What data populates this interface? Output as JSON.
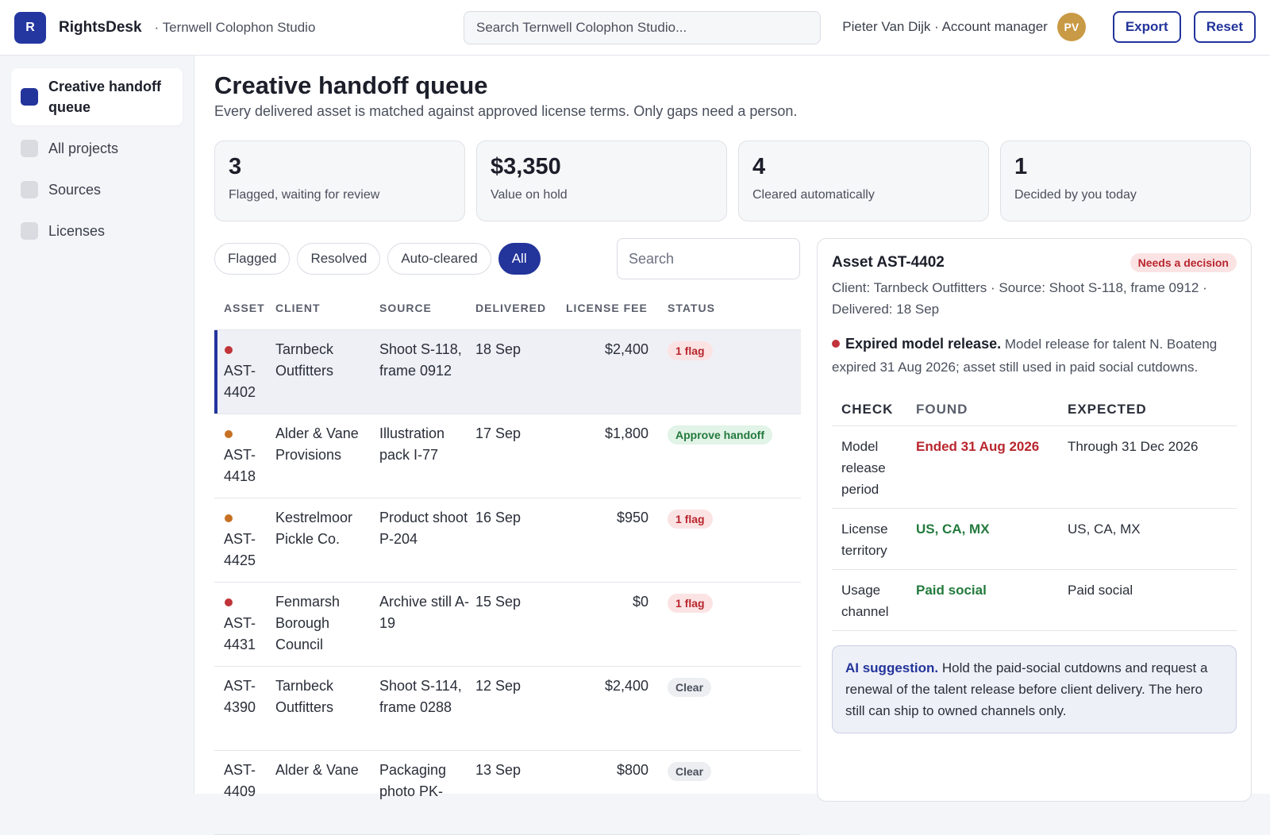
{
  "header": {
    "logo_letter": "R",
    "brand": "RightsDesk",
    "org": "· Ternwell Colophon Studio",
    "search_placeholder": "Search Ternwell Colophon Studio...",
    "user": "Pieter Van Dijk · Account manager",
    "avatar_initials": "PV",
    "export_label": "Export",
    "reset_label": "Reset"
  },
  "sidebar": {
    "items": [
      {
        "label": "Creative handoff queue",
        "active": true
      },
      {
        "label": "All projects",
        "active": false
      },
      {
        "label": "Sources",
        "active": false
      },
      {
        "label": "Licenses",
        "active": false
      }
    ]
  },
  "main": {
    "title": "Creative handoff queue",
    "subtitle": "Every delivered asset is matched against approved license terms. Only gaps need a person.",
    "stats": [
      {
        "value": "3",
        "label": "Flagged, waiting for review"
      },
      {
        "value": "$3,350",
        "label": "Value on hold"
      },
      {
        "value": "4",
        "label": "Cleared automatically"
      },
      {
        "value": "1",
        "label": "Decided by you today"
      }
    ],
    "filters": [
      "Flagged",
      "Resolved",
      "Auto-cleared",
      "All"
    ],
    "active_filter": "All",
    "search_placeholder": "Search",
    "table": {
      "columns": [
        "ASSET",
        "CLIENT",
        "SOURCE",
        "DELIVERED",
        "LICENSE FEE",
        "STATUS"
      ],
      "rows": [
        {
          "asset": "AST-4402",
          "client": "Tarnbeck Outfitters",
          "source": "Shoot S-118, frame 0912",
          "delivered": "18 Sep",
          "fee": "$2,400",
          "status": "1 flag",
          "status_kind": "flag",
          "dot": "red",
          "selected": true
        },
        {
          "asset": "AST-4418",
          "client": "Alder & Vane Provisions",
          "source": "Illustration pack I-77",
          "delivered": "17 Sep",
          "fee": "$1,800",
          "status": "Approve handoff",
          "status_kind": "approve",
          "dot": "orange",
          "selected": false
        },
        {
          "asset": "AST-4425",
          "client": "Kestrelmoor Pickle Co.",
          "source": "Product shoot P-204",
          "delivered": "16 Sep",
          "fee": "$950",
          "status": "1 flag",
          "status_kind": "flag",
          "dot": "orange",
          "selected": false
        },
        {
          "asset": "AST-4431",
          "client": "Fenmarsh Borough Council",
          "source": "Archive still A-19",
          "delivered": "15 Sep",
          "fee": "$0",
          "status": "1 flag",
          "status_kind": "flag",
          "dot": "red",
          "selected": false
        },
        {
          "asset": "AST-4390",
          "client": "Tarnbeck Outfitters",
          "source": "Shoot S-114, frame 0288",
          "delivered": "12 Sep",
          "fee": "$2,400",
          "status": "Clear",
          "status_kind": "clear",
          "dot": "",
          "selected": false
        },
        {
          "asset": "AST-4409",
          "client": "Alder & Vane",
          "source": "Packaging photo PK-",
          "delivered": "13 Sep",
          "fee": "$800",
          "status": "Clear",
          "status_kind": "clear",
          "dot": "",
          "selected": false
        }
      ]
    }
  },
  "detail": {
    "title": "Asset AST-4402",
    "badge": "Needs a decision",
    "meta": "Client: Tarnbeck Outfitters · Source: Shoot S-118, frame 0912 · Delivered: 18 Sep",
    "issue_title": "Expired model release.",
    "issue_text": "Model release for talent N. Boateng expired 31 Aug 2026; asset still used in paid social cutdowns.",
    "check_columns": [
      "CHECK",
      "FOUND",
      "EXPECTED"
    ],
    "checks": [
      {
        "check": "Model release period",
        "found": "Ended 31 Aug 2026",
        "expected": "Through 31 Dec 2026",
        "ok": false
      },
      {
        "check": "License territory",
        "found": "US, CA, MX",
        "expected": "US, CA, MX",
        "ok": true
      },
      {
        "check": "Usage channel",
        "found": "Paid social",
        "expected": "Paid social",
        "ok": true
      }
    ],
    "ai_label": "AI suggestion.",
    "ai_text": "Hold the paid-social cutdowns and request a renewal of the talent release before client delivery. The hero still can ship to owned channels only."
  },
  "colors": {
    "accent": "#23349b",
    "flag": "#b8262d",
    "ok": "#237a3d",
    "dot_red": "#c0343a",
    "dot_orange": "#c77023"
  }
}
